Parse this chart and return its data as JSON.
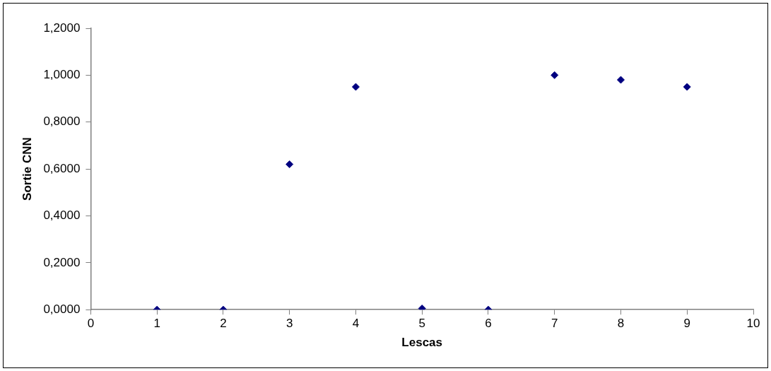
{
  "chart_data": {
    "type": "scatter",
    "xlabel": "Lescas",
    "ylabel": "Sortie CNN",
    "x": [
      1,
      2,
      3,
      4,
      5,
      6,
      7,
      8,
      9
    ],
    "values": [
      0,
      0,
      0.62,
      0.95,
      0.005,
      0,
      1.0,
      0.98,
      0.95
    ],
    "color": "#000080",
    "marker": "diamond",
    "grid": false,
    "legend": false,
    "xlim": [
      0,
      10
    ],
    "xticks": [
      0,
      1,
      2,
      3,
      4,
      5,
      6,
      7,
      8,
      9,
      10
    ],
    "ylim": [
      0,
      1.2
    ],
    "yticks": [
      {
        "value": 0,
        "label": "0,0000"
      },
      {
        "value": 0.2,
        "label": "0,2000"
      },
      {
        "value": 0.4,
        "label": "0,4000"
      },
      {
        "value": 0.6,
        "label": "0,6000"
      },
      {
        "value": 0.8,
        "label": "0,8000"
      },
      {
        "value": 1.0,
        "label": "1,0000"
      },
      {
        "value": 1.2,
        "label": "1,2000"
      }
    ]
  }
}
